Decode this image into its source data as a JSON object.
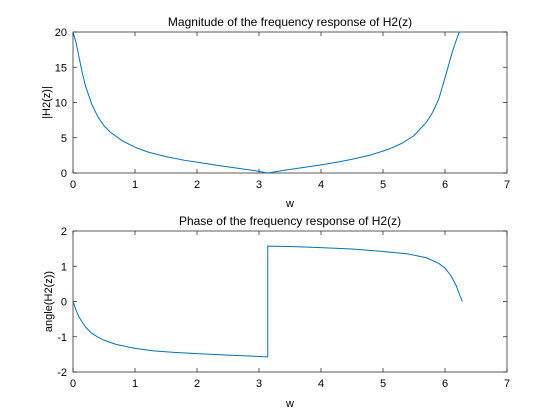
{
  "chart_data": [
    {
      "type": "line",
      "title": "Magnitude of the frequency response of H2(z)",
      "xlabel": "w",
      "ylabel": "|H2(z)|",
      "xlim": [
        0,
        7
      ],
      "ylim": [
        0,
        20
      ],
      "xticks": [
        0,
        1,
        2,
        3,
        4,
        5,
        6,
        7
      ],
      "yticks": [
        0,
        5,
        10,
        15,
        20
      ],
      "grid": false,
      "line_color": "#0072BD",
      "series": [
        {
          "x": [
            0,
            0.05,
            0.1,
            0.15,
            0.2,
            0.3,
            0.4,
            0.5,
            0.6,
            0.8,
            1.0,
            1.2,
            1.5,
            1.8,
            2.0,
            2.3,
            2.6,
            2.9,
            3.1416,
            3.4,
            3.7,
            4.0,
            4.3,
            4.5,
            4.8,
            5.1,
            5.3,
            5.5,
            5.7,
            5.8,
            5.9,
            6.0,
            6.08,
            6.13,
            6.18,
            6.23,
            6.28
          ],
          "y": [
            20,
            18.5,
            16.3,
            14.2,
            12.4,
            9.8,
            8.0,
            6.7,
            5.8,
            4.55,
            3.66,
            3.0,
            2.32,
            1.8,
            1.54,
            1.12,
            0.75,
            0.38,
            0.0,
            0.38,
            0.77,
            1.16,
            1.6,
            1.95,
            2.55,
            3.4,
            4.2,
            5.3,
            7.2,
            8.6,
            10.5,
            13.5,
            16.0,
            17.5,
            18.8,
            20.0,
            20.0
          ]
        }
      ]
    },
    {
      "type": "line",
      "title": "Phase of the frequency response of H2(z)",
      "xlabel": "w",
      "ylabel": "angle(H2(z))",
      "xlim": [
        0,
        7
      ],
      "ylim": [
        -2,
        2
      ],
      "xticks": [
        0,
        1,
        2,
        3,
        4,
        5,
        6,
        7
      ],
      "yticks": [
        -2,
        -1,
        0,
        1,
        2
      ],
      "grid": false,
      "line_color": "#0072BD",
      "series": [
        {
          "x": [
            0,
            0.05,
            0.1,
            0.2,
            0.3,
            0.4,
            0.5,
            0.7,
            1.0,
            1.3,
            1.6,
            2.0,
            2.5,
            3.0,
            3.1416,
            3.1416,
            3.5,
            4.0,
            4.5,
            5.0,
            5.4,
            5.7,
            5.9,
            6.0,
            6.1,
            6.18,
            6.23,
            6.28
          ],
          "y": [
            0,
            -0.25,
            -0.45,
            -0.72,
            -0.9,
            -1.01,
            -1.1,
            -1.22,
            -1.33,
            -1.4,
            -1.44,
            -1.48,
            -1.52,
            -1.56,
            -1.57,
            1.57,
            1.56,
            1.53,
            1.49,
            1.42,
            1.35,
            1.24,
            1.08,
            0.95,
            0.72,
            0.45,
            0.22,
            0.0
          ]
        }
      ]
    }
  ]
}
